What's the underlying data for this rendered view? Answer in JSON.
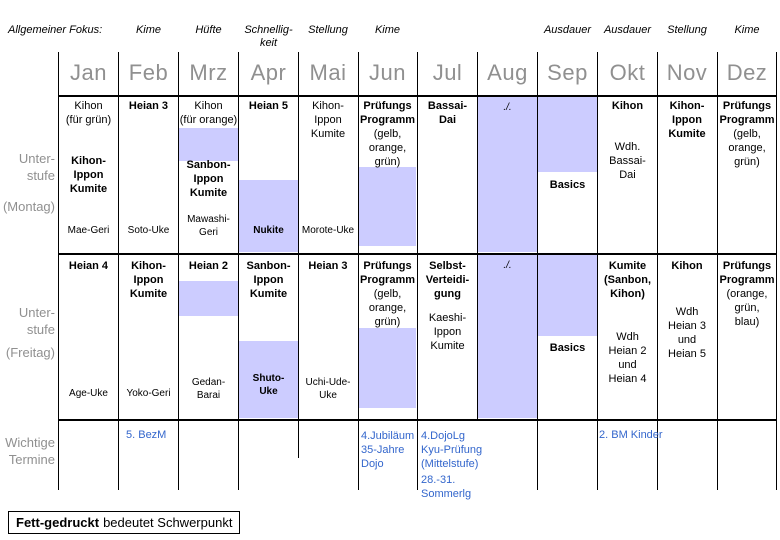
{
  "colors": {
    "highlight": "#ccccff",
    "termine_blue": "#3366cc",
    "muted_gray": "#909090"
  },
  "focus_row": {
    "prefix": "Allgemeiner Fokus:",
    "by_month": [
      "",
      "Kime",
      "Hüfte",
      "Schnellig-\nkeit",
      "Stellung",
      "Kime",
      "",
      "",
      "Ausdauer",
      "Ausdauer",
      "Stellung",
      "Kime"
    ]
  },
  "months": [
    "Jan",
    "Feb",
    "Mrz",
    "Apr",
    "Mai",
    "Jun",
    "Jul",
    "Aug",
    "Sep",
    "Okt",
    "Nov",
    "Dez"
  ],
  "row_labels": {
    "monday": "Unter-\nstufe",
    "monday_day": "(Montag)",
    "friday": "Unter-\nstufe",
    "friday_day": "(Freitag)",
    "events": "Wichtige\nTermine"
  },
  "monday": [
    {
      "month": "Jan",
      "main": "Kihon\n(für grün)",
      "emphasis": "Kihon-\nIppon\nKumite",
      "technique": "Mae-Geri"
    },
    {
      "month": "Feb",
      "emphasis": "Heian 3",
      "technique": "Soto-Uke"
    },
    {
      "month": "Mrz",
      "main": "Kihon\n(für orange)",
      "emphasis": "Sanbon-\nIppon\nKumite",
      "technique": "Mawashi-\nGeri"
    },
    {
      "month": "Apr",
      "emphasis": "Heian 5",
      "technique": "Nukite"
    },
    {
      "month": "Mai",
      "main": "Kihon-\nIppon\nKumite",
      "technique": "Morote-Uke"
    },
    {
      "month": "Jun",
      "emphasis": "Prüfungs\nProgramm",
      "main": "(gelb,\norange,\ngrün)"
    },
    {
      "month": "Jul",
      "emphasis": "Bassai-\nDai"
    },
    {
      "month": "Aug",
      "none": "./."
    },
    {
      "month": "Sep",
      "emphasis": "Basics"
    },
    {
      "month": "Okt",
      "emphasis": "Kihon",
      "main": "Wdh.\nBassai-\nDai"
    },
    {
      "month": "Nov",
      "emphasis": "Kihon-\nIppon\nKumite"
    },
    {
      "month": "Dez",
      "emphasis": "Prüfungs\nProgramm",
      "main": "(gelb,\norange,\ngrün)"
    }
  ],
  "friday": [
    {
      "month": "Jan",
      "emphasis": "Heian 4",
      "technique": "Age-Uke"
    },
    {
      "month": "Feb",
      "emphasis": "Kihon-\nIppon\nKumite",
      "technique": "Yoko-Geri"
    },
    {
      "month": "Mrz",
      "emphasis": "Heian 2",
      "technique": "Gedan-\nBarai"
    },
    {
      "month": "Apr",
      "emphasis": "Sanbon-\nIppon\nKumite",
      "technique": "Shuto-\nUke"
    },
    {
      "month": "Mai",
      "emphasis": "Heian 3",
      "technique": "Uchi-Ude-\nUke"
    },
    {
      "month": "Jun",
      "emphasis": "Prüfungs\nProgramm",
      "main": "(gelb,\norange,\ngrün)"
    },
    {
      "month": "Jul",
      "emphasis": "Selbst-\nVerteidi-\ngung",
      "main": "Kaeshi-\nIppon\nKumite"
    },
    {
      "month": "Aug",
      "none": "./."
    },
    {
      "month": "Sep",
      "emphasis": "Basics"
    },
    {
      "month": "Okt",
      "emphasis": "Kumite\n(Sanbon,\nKihon)",
      "main": "Wdh\nHeian 2\nund\nHeian 4"
    },
    {
      "month": "Nov",
      "emphasis": "Kihon",
      "main": "Wdh\nHeian 3\nund\nHeian 5"
    },
    {
      "month": "Dez",
      "emphasis": "Prüfungs\nProgramm",
      "main": "(orange,\ngrün,\nblau)"
    }
  ],
  "events": [
    {
      "month": "Feb",
      "text": "5. BezM"
    },
    {
      "month": "Jun",
      "text": "4.Jubiläum\n35-Jahre\nDojo"
    },
    {
      "month": "Jul",
      "text": "4.DojoLg\nKyu-Prüfung\n(Mittelstufe)",
      "text2": "28.-31.\nSommerlg"
    },
    {
      "month": "Okt",
      "text": "2. BM Kinder"
    }
  ],
  "legend": {
    "bold": "Fett-gedruckt",
    "rest": "bedeutet Schwerpunkt"
  }
}
